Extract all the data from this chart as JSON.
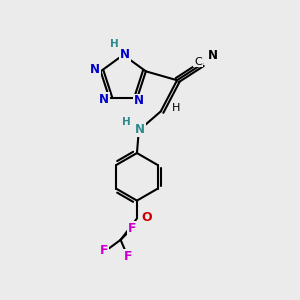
{
  "background_color": "#ebebeb",
  "atom_colors": {
    "N_tetrazole": "#0000cc",
    "N_amine": "#2e8b8b",
    "O": "#cc0000",
    "F": "#cc00cc",
    "C": "#000000",
    "H_tetrazole": "#2e8b8b"
  },
  "bond_color": "#000000",
  "bond_width": 1.5,
  "fig_width": 3.0,
  "fig_height": 3.0,
  "dpi": 100,
  "xlim": [
    0,
    10
  ],
  "ylim": [
    0,
    10
  ]
}
